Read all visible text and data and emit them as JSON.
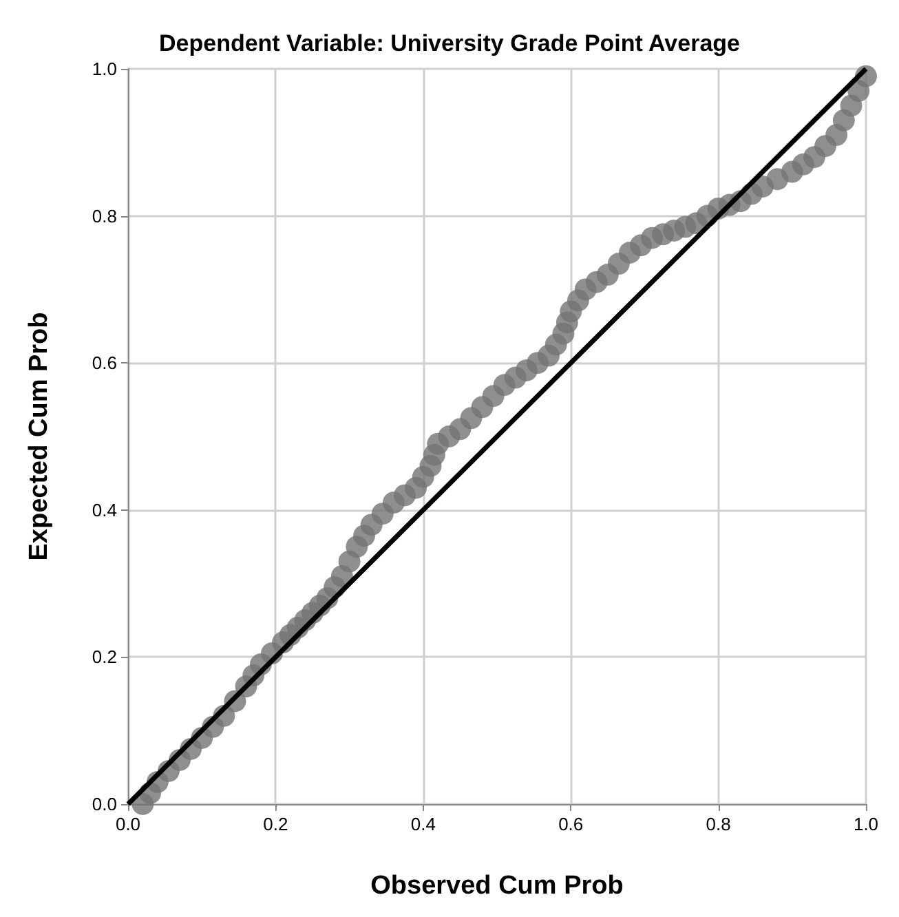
{
  "chart_data": {
    "type": "scatter",
    "title": "Dependent Variable: University Grade Point Average",
    "xlabel": "Observed Cum Prob",
    "ylabel": "Expected Cum Prob",
    "xlim": [
      0,
      1
    ],
    "ylim": [
      0,
      1
    ],
    "xticks": [
      {
        "value": 0,
        "label": "0.0"
      },
      {
        "value": 0.2,
        "label": "0.2"
      },
      {
        "value": 0.4,
        "label": "0.4"
      },
      {
        "value": 0.6,
        "label": "0.6"
      },
      {
        "value": 0.8,
        "label": "0.8"
      },
      {
        "value": 1,
        "label": "1.0"
      }
    ],
    "yticks": [
      {
        "value": 0,
        "label": "0.0"
      },
      {
        "value": 0.2,
        "label": "0.2"
      },
      {
        "value": 0.4,
        "label": "0.4"
      },
      {
        "value": 0.6,
        "label": "0.6"
      },
      {
        "value": 0.8,
        "label": "0.8"
      },
      {
        "value": 1,
        "label": "1.0"
      }
    ],
    "grid": true,
    "series": [
      {
        "color": "#737373",
        "marker": "circle",
        "x": [
          0.02,
          0.03,
          0.04,
          0.055,
          0.07,
          0.085,
          0.1,
          0.115,
          0.13,
          0.145,
          0.16,
          0.17,
          0.18,
          0.195,
          0.21,
          0.22,
          0.23,
          0.24,
          0.25,
          0.26,
          0.27,
          0.28,
          0.29,
          0.3,
          0.31,
          0.32,
          0.33,
          0.345,
          0.36,
          0.375,
          0.39,
          0.4,
          0.41,
          0.415,
          0.42,
          0.435,
          0.45,
          0.465,
          0.48,
          0.495,
          0.51,
          0.525,
          0.54,
          0.555,
          0.57,
          0.58,
          0.59,
          0.595,
          0.6,
          0.61,
          0.62,
          0.635,
          0.65,
          0.665,
          0.68,
          0.695,
          0.71,
          0.725,
          0.74,
          0.755,
          0.77,
          0.785,
          0.8,
          0.815,
          0.83,
          0.845,
          0.86,
          0.88,
          0.9,
          0.915,
          0.93,
          0.945,
          0.96,
          0.97,
          0.98,
          0.99,
          1.0
        ],
        "values": [
          0.0,
          0.015,
          0.03,
          0.045,
          0.06,
          0.075,
          0.09,
          0.105,
          0.12,
          0.14,
          0.16,
          0.175,
          0.19,
          0.205,
          0.22,
          0.23,
          0.24,
          0.25,
          0.26,
          0.27,
          0.28,
          0.295,
          0.31,
          0.33,
          0.35,
          0.365,
          0.38,
          0.395,
          0.41,
          0.42,
          0.43,
          0.445,
          0.46,
          0.475,
          0.49,
          0.5,
          0.51,
          0.525,
          0.54,
          0.555,
          0.57,
          0.58,
          0.59,
          0.6,
          0.61,
          0.625,
          0.64,
          0.655,
          0.67,
          0.685,
          0.7,
          0.71,
          0.72,
          0.735,
          0.75,
          0.76,
          0.77,
          0.775,
          0.78,
          0.785,
          0.79,
          0.8,
          0.81,
          0.815,
          0.82,
          0.83,
          0.84,
          0.85,
          0.86,
          0.87,
          0.88,
          0.895,
          0.91,
          0.93,
          0.95,
          0.97,
          0.99
        ]
      },
      {
        "type": "line",
        "color": "#000000",
        "x": [
          0,
          1
        ],
        "values": [
          0,
          1
        ]
      }
    ]
  }
}
